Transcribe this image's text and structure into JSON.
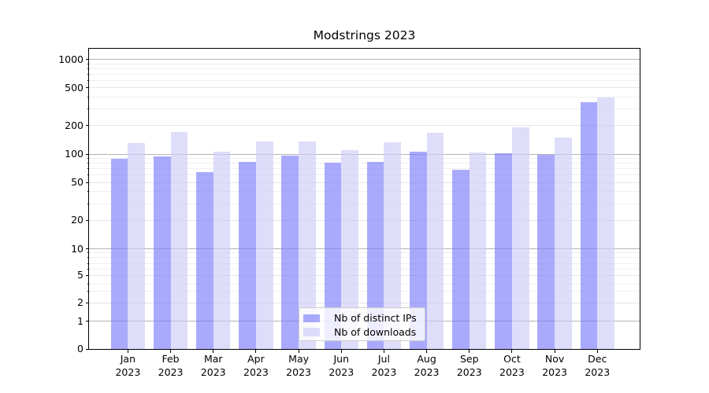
{
  "figure": {
    "background": "#ffffff"
  },
  "chart_data": {
    "type": "bar",
    "title": "Modstrings 2023",
    "categories": [
      "Jan",
      "Feb",
      "Mar",
      "Apr",
      "May",
      "Jun",
      "Jul",
      "Aug",
      "Sep",
      "Oct",
      "Nov",
      "Dec"
    ],
    "year": "2023",
    "series": [
      {
        "name": "Nb of distinct IPs",
        "color": "rgba(125,125,250,0.65)",
        "values": [
          90,
          94,
          64,
          83,
          96,
          81,
          83,
          106,
          68,
          102,
          99,
          350
        ]
      },
      {
        "name": "Nb of downloads",
        "color": "rgba(205,205,248,0.65)",
        "values": [
          130,
          171,
          105,
          137,
          136,
          110,
          133,
          167,
          104,
          190,
          148,
          396
        ]
      }
    ],
    "yscale": "symlog",
    "ylim": [
      0,
      1300
    ],
    "yticks": [
      0,
      1,
      2,
      5,
      10,
      20,
      50,
      100,
      200,
      500,
      1000
    ],
    "grid": true,
    "legend_position": "lower center"
  },
  "colors": {
    "grid_major": "#b4b4b4",
    "grid_mid": "#e4e4e8",
    "grid_minor": "#efeff2",
    "axis": "#000000"
  }
}
